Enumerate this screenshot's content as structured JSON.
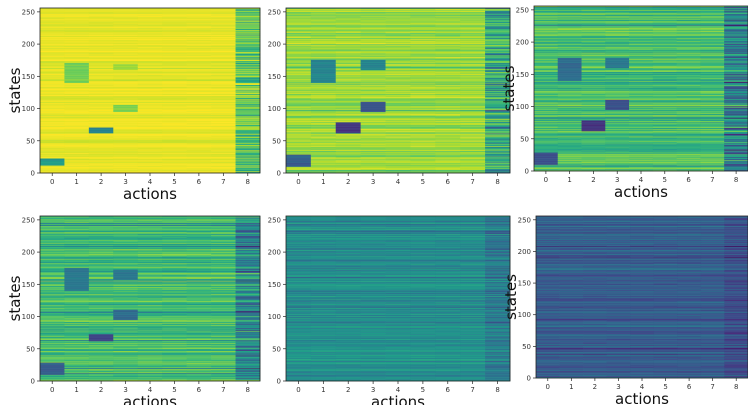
{
  "chart_data": [
    {
      "type": "heatmap",
      "xlabel": "actions",
      "ylabel": "states",
      "x_ticks": [
        "0",
        "1",
        "2",
        "3",
        "4",
        "5",
        "6",
        "7",
        "8"
      ],
      "y_ticks": [
        "0",
        "50",
        "100",
        "150",
        "200",
        "250"
      ],
      "ylim": [
        0,
        256
      ],
      "n_states": 256,
      "n_actions": 9,
      "base_level": 0.97,
      "noise": 0.04,
      "edge_dark": 0.45,
      "blocks": [
        {
          "action": 1,
          "states": [
            140,
            170
          ],
          "level": 0.78
        },
        {
          "action": 2,
          "states": [
            62,
            70
          ],
          "level": 0.45
        },
        {
          "action": 3,
          "states": [
            95,
            105
          ],
          "level": 0.8
        },
        {
          "action": 3,
          "states": [
            160,
            168
          ],
          "level": 0.85
        },
        {
          "action": 0,
          "states": [
            12,
            22
          ],
          "level": 0.55
        }
      ]
    },
    {
      "type": "heatmap",
      "xlabel": "",
      "ylabel": "",
      "x_ticks": [
        "0",
        "1",
        "2",
        "3",
        "4",
        "5",
        "6",
        "7",
        "8"
      ],
      "y_ticks": [
        "0",
        "50",
        "100",
        "150",
        "200",
        "250"
      ],
      "ylim": [
        0,
        256
      ],
      "n_states": 256,
      "n_actions": 9,
      "base_level": 0.85,
      "noise": 0.1,
      "edge_dark": 0.5,
      "blocks": [
        {
          "action": 1,
          "states": [
            140,
            175
          ],
          "level": 0.45
        },
        {
          "action": 2,
          "states": [
            62,
            78
          ],
          "level": 0.15
        },
        {
          "action": 3,
          "states": [
            95,
            110
          ],
          "level": 0.25
        },
        {
          "action": 3,
          "states": [
            160,
            175
          ],
          "level": 0.45
        },
        {
          "action": 0,
          "states": [
            10,
            28
          ],
          "level": 0.3
        }
      ]
    },
    {
      "type": "heatmap",
      "xlabel": "actions",
      "ylabel": "states",
      "x_ticks": [
        "0",
        "1",
        "2",
        "3",
        "4",
        "5",
        "6",
        "7",
        "8"
      ],
      "y_ticks": [
        "0",
        "50",
        "100",
        "150",
        "200",
        "250"
      ],
      "ylim": [
        0,
        256
      ],
      "n_states": 256,
      "n_actions": 9,
      "base_level": 0.7,
      "noise": 0.14,
      "edge_dark": 0.5,
      "blocks": [
        {
          "action": 1,
          "states": [
            140,
            175
          ],
          "level": 0.35
        },
        {
          "action": 2,
          "states": [
            62,
            78
          ],
          "level": 0.15
        },
        {
          "action": 3,
          "states": [
            95,
            110
          ],
          "level": 0.25
        },
        {
          "action": 3,
          "states": [
            160,
            175
          ],
          "level": 0.4
        },
        {
          "action": 0,
          "states": [
            10,
            28
          ],
          "level": 0.25
        }
      ]
    },
    {
      "type": "heatmap",
      "xlabel": "actions",
      "ylabel": "states",
      "x_ticks": [
        "0",
        "1",
        "2",
        "3",
        "4",
        "5",
        "6",
        "7",
        "8"
      ],
      "y_ticks": [
        "0",
        "50",
        "100",
        "150",
        "200",
        "250"
      ],
      "ylim": [
        0,
        256
      ],
      "n_states": 256,
      "n_actions": 9,
      "base_level": 0.68,
      "noise": 0.14,
      "edge_dark": 0.4,
      "blocks": [
        {
          "action": 1,
          "states": [
            140,
            175
          ],
          "level": 0.4
        },
        {
          "action": 2,
          "states": [
            62,
            72
          ],
          "level": 0.2
        },
        {
          "action": 3,
          "states": [
            95,
            110
          ],
          "level": 0.35
        },
        {
          "action": 3,
          "states": [
            158,
            172
          ],
          "level": 0.4
        },
        {
          "action": 0,
          "states": [
            10,
            28
          ],
          "level": 0.3
        }
      ]
    },
    {
      "type": "heatmap",
      "xlabel": "actions",
      "ylabel": "",
      "x_ticks": [
        "0",
        "1",
        "2",
        "3",
        "4",
        "5",
        "6",
        "7",
        "8"
      ],
      "y_ticks": [
        "0",
        "50",
        "100",
        "150",
        "200",
        "250"
      ],
      "ylim": [
        0,
        256
      ],
      "n_states": 256,
      "n_actions": 9,
      "base_level": 0.5,
      "noise": 0.09,
      "edge_dark": 0.15,
      "blocks": []
    },
    {
      "type": "heatmap",
      "xlabel": "actions",
      "ylabel": "states",
      "x_ticks": [
        "0",
        "1",
        "2",
        "3",
        "4",
        "5",
        "6",
        "7",
        "8"
      ],
      "y_ticks": [
        "0",
        "50",
        "100",
        "150",
        "200",
        "250"
      ],
      "ylim": [
        0,
        256
      ],
      "n_states": 256,
      "n_actions": 9,
      "base_level": 0.3,
      "noise": 0.09,
      "edge_dark": 0.1,
      "blocks": []
    }
  ]
}
